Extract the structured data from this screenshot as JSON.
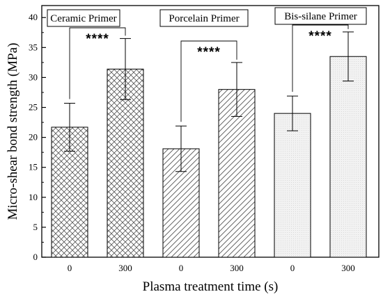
{
  "chart_data": {
    "type": "bar",
    "xlabel": "Plasma treatment time (s)",
    "ylabel": "Micro-shear bond strength (MPa)",
    "ylim": [
      0,
      42
    ],
    "yticks": [
      0,
      5,
      10,
      15,
      20,
      25,
      30,
      35,
      40
    ],
    "categories": [
      "0",
      "300",
      "0",
      "300",
      "0",
      "300"
    ],
    "values": [
      21.7,
      31.4,
      18.1,
      28.0,
      24.0,
      33.5
    ],
    "error": [
      4.0,
      5.1,
      3.8,
      4.5,
      2.9,
      4.1
    ],
    "patterns": [
      "crosshatch",
      "crosshatch",
      "diagonal",
      "diagonal",
      "dotted",
      "dotted"
    ],
    "groups": [
      {
        "label": "Ceramic Primer",
        "bars": [
          0,
          1
        ]
      },
      {
        "label": "Porcelain Primer",
        "bars": [
          2,
          3
        ]
      },
      {
        "label": "Bis-silane Primer",
        "bars": [
          4,
          5
        ]
      }
    ],
    "significance": [
      {
        "bars": [
          0,
          1
        ],
        "label": "****"
      },
      {
        "bars": [
          2,
          3
        ],
        "label": "****"
      },
      {
        "bars": [
          4,
          5
        ],
        "label": "****"
      }
    ],
    "grid": false
  }
}
